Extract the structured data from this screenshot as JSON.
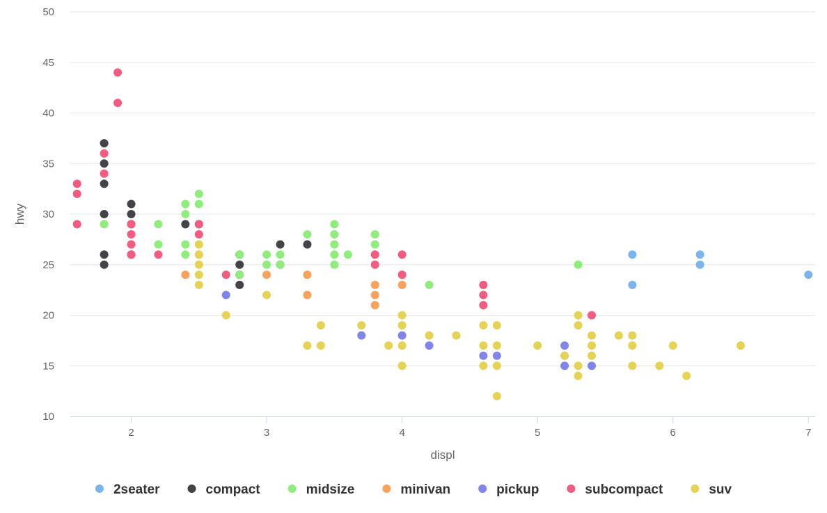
{
  "chart_data": {
    "type": "scatter",
    "title": "",
    "xlabel": "displ",
    "ylabel": "hwy",
    "xlim": [
      1.55,
      7.05
    ],
    "ylim": [
      10,
      50
    ],
    "xticks": [
      "2",
      "3",
      "4",
      "5",
      "6",
      "7"
    ],
    "yticks": [
      "10",
      "15",
      "20",
      "25",
      "30",
      "35",
      "40",
      "45",
      "50"
    ],
    "grid": "horizontal",
    "legend_position": "bottom-center",
    "series": [
      {
        "name": "2seater",
        "color": "#7cb5ec",
        "points": [
          [
            5.7,
            26
          ],
          [
            5.7,
            23
          ],
          [
            6.2,
            26
          ],
          [
            6.2,
            25
          ],
          [
            7.0,
            24
          ]
        ]
      },
      {
        "name": "compact",
        "color": "#434348",
        "points": [
          [
            1.8,
            37
          ],
          [
            1.8,
            35
          ],
          [
            1.8,
            33
          ],
          [
            1.8,
            30
          ],
          [
            1.8,
            26
          ],
          [
            1.8,
            25
          ],
          [
            2.0,
            31
          ],
          [
            2.0,
            30
          ],
          [
            2.0,
            29
          ],
          [
            2.0,
            26
          ],
          [
            2.4,
            29
          ],
          [
            2.5,
            29
          ],
          [
            2.8,
            26
          ],
          [
            2.8,
            25
          ],
          [
            2.8,
            24
          ],
          [
            2.8,
            23
          ],
          [
            3.1,
            27
          ],
          [
            3.1,
            25
          ],
          [
            3.3,
            27
          ]
        ]
      },
      {
        "name": "midsize",
        "color": "#90ed7d",
        "points": [
          [
            1.8,
            29
          ],
          [
            2.2,
            29
          ],
          [
            2.2,
            27
          ],
          [
            2.4,
            31
          ],
          [
            2.4,
            30
          ],
          [
            2.4,
            27
          ],
          [
            2.4,
            26
          ],
          [
            2.5,
            32
          ],
          [
            2.5,
            31
          ],
          [
            2.8,
            26
          ],
          [
            2.8,
            24
          ],
          [
            3.0,
            26
          ],
          [
            3.0,
            25
          ],
          [
            3.1,
            26
          ],
          [
            3.1,
            25
          ],
          [
            3.3,
            28
          ],
          [
            3.5,
            29
          ],
          [
            3.5,
            28
          ],
          [
            3.5,
            27
          ],
          [
            3.5,
            26
          ],
          [
            3.5,
            25
          ],
          [
            3.6,
            26
          ],
          [
            3.8,
            28
          ],
          [
            3.8,
            27
          ],
          [
            3.8,
            26
          ],
          [
            4.2,
            23
          ],
          [
            5.3,
            25
          ]
        ]
      },
      {
        "name": "minivan",
        "color": "#f7a35c",
        "points": [
          [
            2.4,
            24
          ],
          [
            2.5,
            26
          ],
          [
            3.0,
            24
          ],
          [
            3.3,
            24
          ],
          [
            3.3,
            22
          ],
          [
            3.8,
            23
          ],
          [
            3.8,
            22
          ],
          [
            3.8,
            21
          ],
          [
            4.0,
            23
          ]
        ]
      },
      {
        "name": "pickup",
        "color": "#8085e9",
        "points": [
          [
            2.7,
            22
          ],
          [
            3.7,
            18
          ],
          [
            4.0,
            18
          ],
          [
            4.2,
            17
          ],
          [
            4.6,
            16
          ],
          [
            4.7,
            16
          ],
          [
            5.2,
            17
          ],
          [
            5.2,
            16
          ],
          [
            5.2,
            15
          ],
          [
            5.4,
            15
          ]
        ]
      },
      {
        "name": "subcompact",
        "color": "#f15c80",
        "points": [
          [
            1.6,
            33
          ],
          [
            1.6,
            32
          ],
          [
            1.6,
            29
          ],
          [
            1.8,
            36
          ],
          [
            1.8,
            34
          ],
          [
            1.9,
            44
          ],
          [
            1.9,
            41
          ],
          [
            2.0,
            29
          ],
          [
            2.0,
            28
          ],
          [
            2.0,
            27
          ],
          [
            2.0,
            26
          ],
          [
            2.2,
            26
          ],
          [
            2.5,
            29
          ],
          [
            2.5,
            28
          ],
          [
            2.7,
            24
          ],
          [
            3.8,
            26
          ],
          [
            3.8,
            25
          ],
          [
            4.0,
            26
          ],
          [
            4.0,
            24
          ],
          [
            4.6,
            23
          ],
          [
            4.6,
            22
          ],
          [
            4.6,
            21
          ],
          [
            5.4,
            20
          ]
        ]
      },
      {
        "name": "suv",
        "color": "#e4d354",
        "points": [
          [
            2.5,
            27
          ],
          [
            2.5,
            26
          ],
          [
            2.5,
            25
          ],
          [
            2.5,
            24
          ],
          [
            2.5,
            23
          ],
          [
            2.7,
            20
          ],
          [
            3.0,
            22
          ],
          [
            3.3,
            17
          ],
          [
            3.4,
            19
          ],
          [
            3.4,
            17
          ],
          [
            3.7,
            19
          ],
          [
            3.9,
            17
          ],
          [
            4.0,
            20
          ],
          [
            4.0,
            19
          ],
          [
            4.0,
            17
          ],
          [
            4.0,
            15
          ],
          [
            4.2,
            18
          ],
          [
            4.4,
            18
          ],
          [
            4.6,
            19
          ],
          [
            4.6,
            17
          ],
          [
            4.6,
            15
          ],
          [
            4.7,
            19
          ],
          [
            4.7,
            17
          ],
          [
            4.7,
            15
          ],
          [
            4.7,
            12
          ],
          [
            5.0,
            17
          ],
          [
            5.2,
            16
          ],
          [
            5.3,
            20
          ],
          [
            5.3,
            19
          ],
          [
            5.3,
            15
          ],
          [
            5.3,
            14
          ],
          [
            5.4,
            18
          ],
          [
            5.4,
            17
          ],
          [
            5.4,
            16
          ],
          [
            5.6,
            18
          ],
          [
            5.7,
            18
          ],
          [
            5.7,
            17
          ],
          [
            5.7,
            15
          ],
          [
            5.9,
            15
          ],
          [
            6.0,
            17
          ],
          [
            6.1,
            14
          ],
          [
            6.5,
            17
          ]
        ]
      }
    ]
  }
}
